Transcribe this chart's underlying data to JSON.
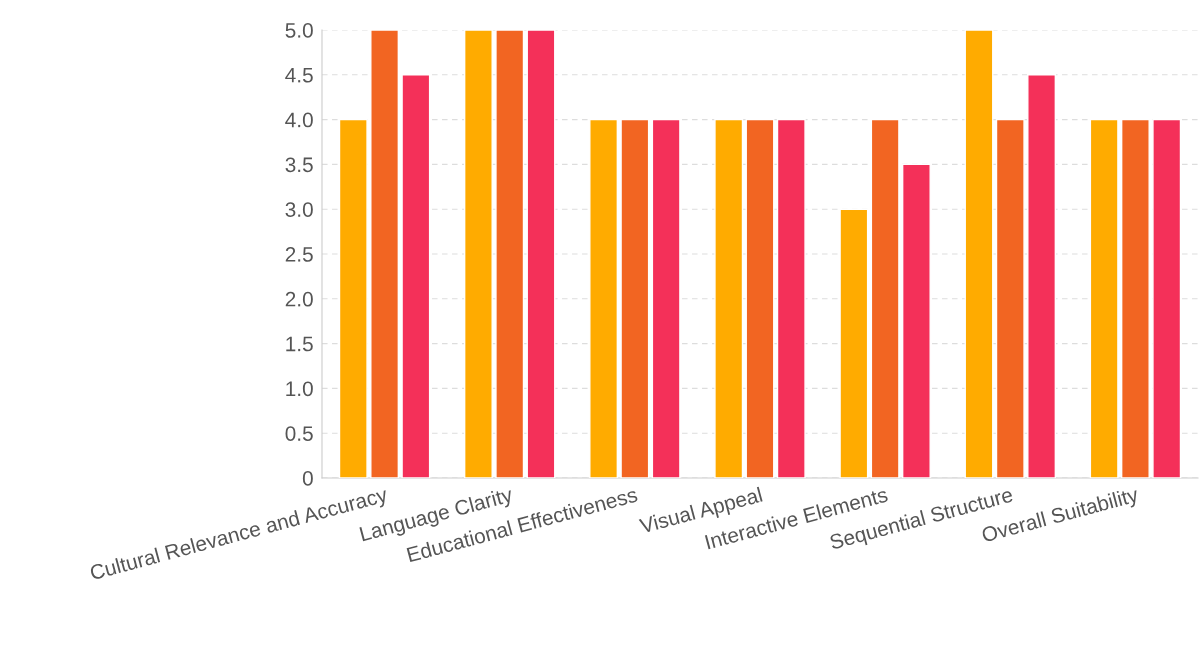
{
  "chart_data": {
    "type": "bar",
    "categories": [
      "Cultural Relevance and Accuracy",
      "Language Clarity",
      "Educational Effectiveness",
      "Visual Appeal",
      "Interactive Elements",
      "Sequential Structure",
      "Overall Suitability"
    ],
    "series": [
      {
        "color": "#ffab00",
        "values": [
          4,
          5,
          4,
          4,
          3,
          5,
          4
        ]
      },
      {
        "color": "#f26522",
        "values": [
          5,
          5,
          4,
          4,
          4,
          4,
          4
        ]
      },
      {
        "color": "#f43059",
        "values": [
          4.5,
          5,
          4,
          4,
          3.5,
          4.5,
          4
        ]
      }
    ],
    "ylim": [
      0,
      5
    ],
    "yticks": [
      0,
      {
        "value": 0.5,
        "label": "0.5"
      },
      {
        "value": 1,
        "label": "1.0"
      },
      {
        "value": 1.5,
        "label": "1.5"
      },
      {
        "value": 2,
        "label": "2.0"
      },
      {
        "value": 2.5,
        "label": "2.5"
      },
      {
        "value": 3,
        "label": "3.0"
      },
      {
        "value": 3.5,
        "label": "3.5"
      },
      {
        "value": 4,
        "label": "4.0"
      },
      {
        "value": 4.5,
        "label": "4.5"
      },
      {
        "value": 5,
        "label": "5.0"
      }
    ],
    "grid": "y",
    "legend": false
  }
}
